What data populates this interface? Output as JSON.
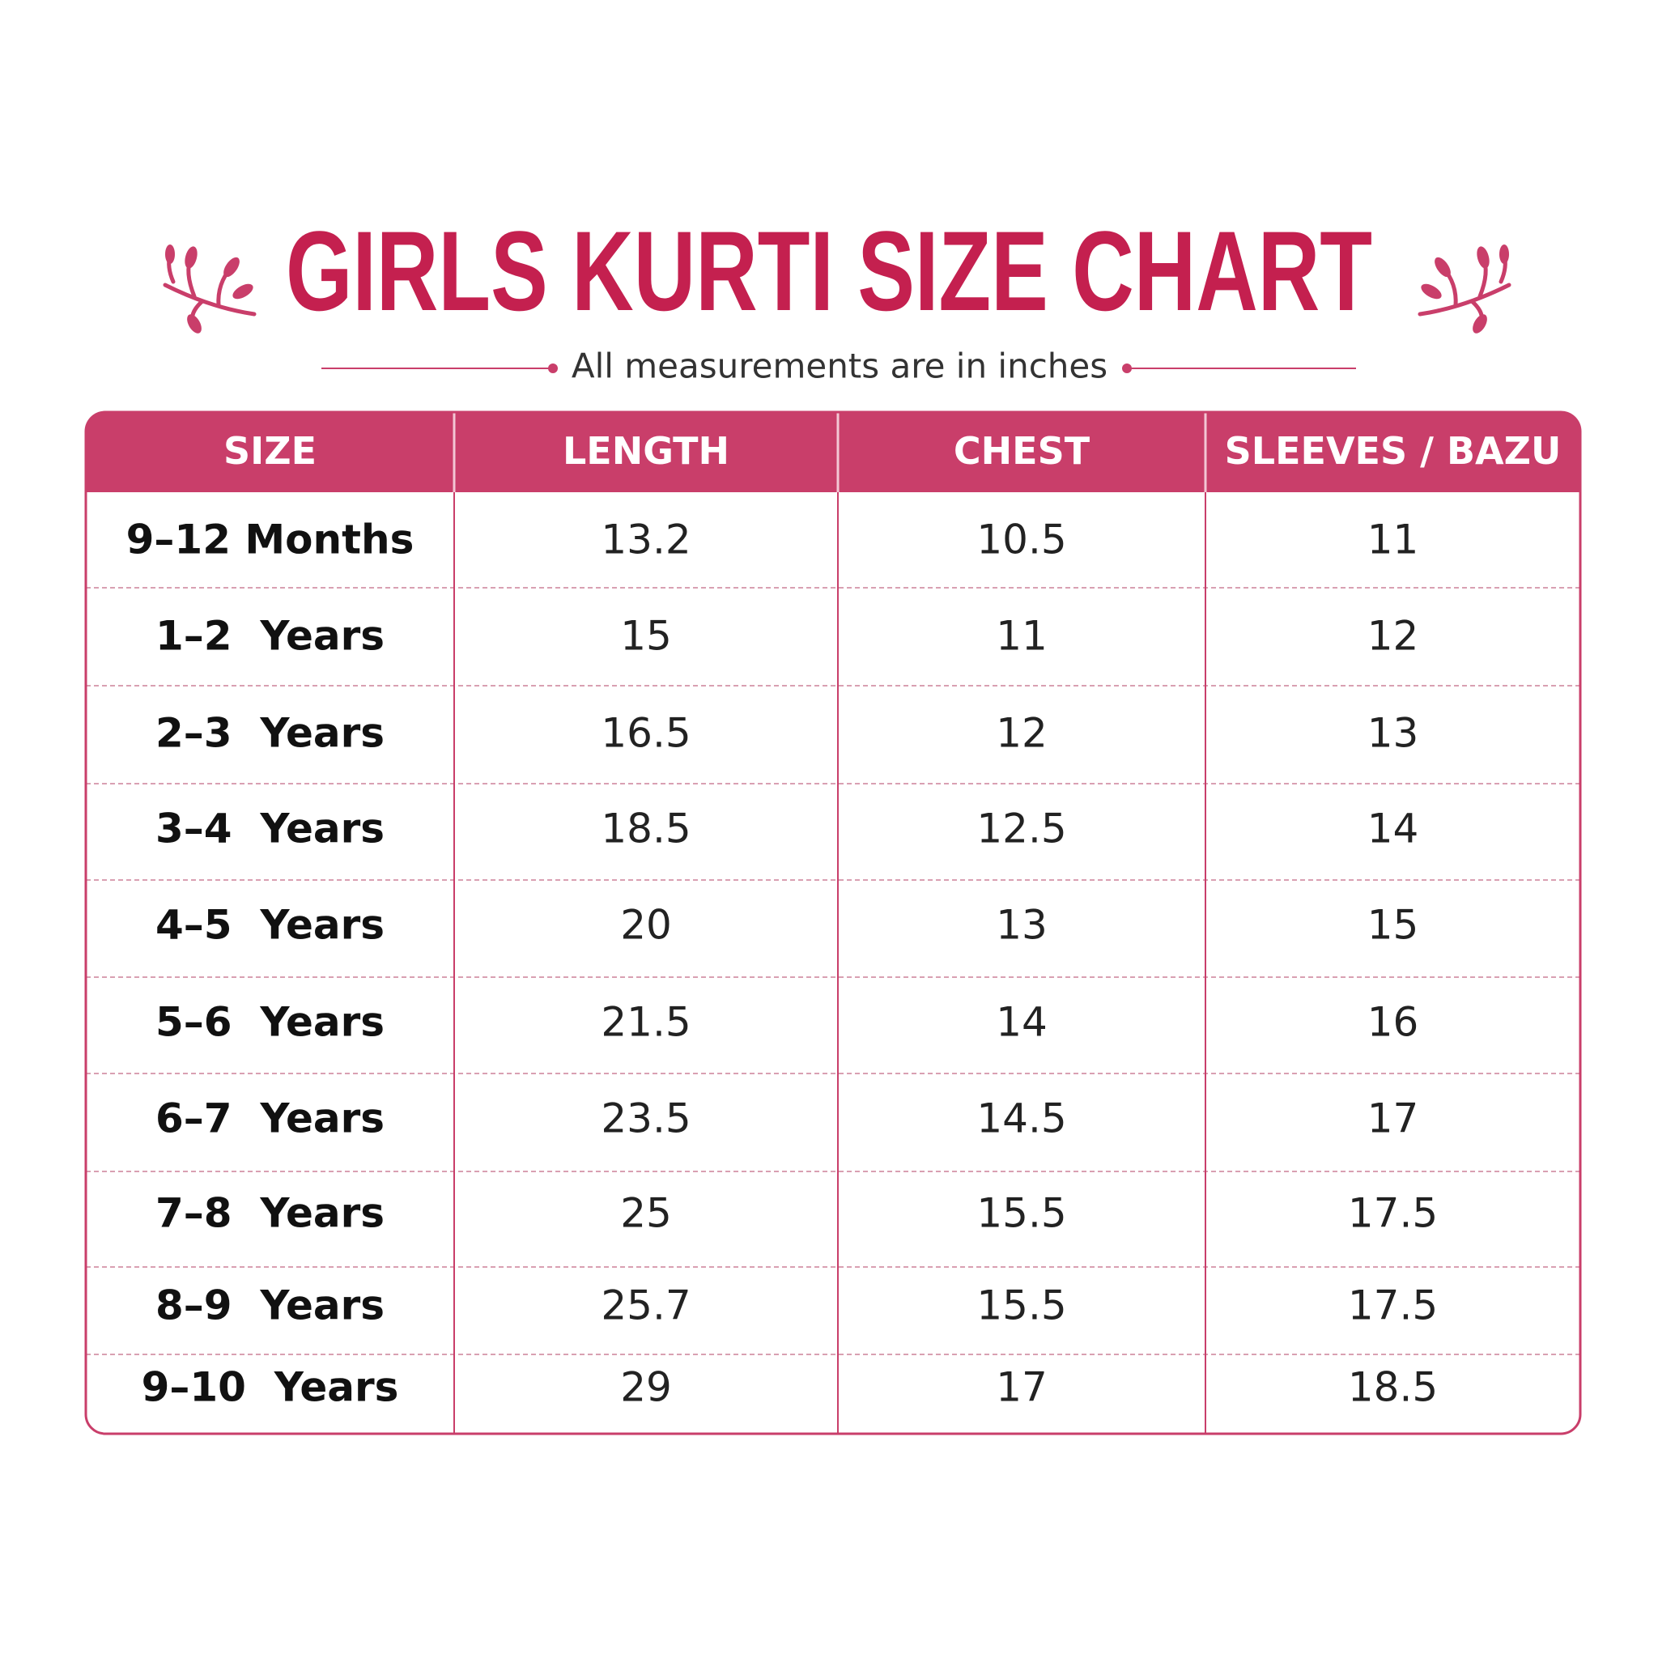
{
  "title": "GIRLS KURTI SIZE CHART",
  "subtitle": "All measurements are in inches",
  "table": {
    "headers": [
      "SIZE",
      "LENGTH",
      "CHEST",
      "SLEEVES / BAZU"
    ],
    "rows": [
      [
        "9–12 Months",
        "13.2",
        "10.5",
        "11"
      ],
      [
        "1–2  Years",
        "15",
        "11",
        "12"
      ],
      [
        "2–3  Years",
        "16.5",
        "12",
        "13"
      ],
      [
        "3–4  Years",
        "18.5",
        "12.5",
        "14"
      ],
      [
        "4–5  Years",
        "20",
        "13",
        "15"
      ],
      [
        "5–6  Years",
        "21.5",
        "14",
        "16"
      ],
      [
        "6–7  Years",
        "23.5",
        "14.5",
        "17"
      ],
      [
        "7–8  Years",
        "25",
        "15.5",
        "17.5"
      ],
      [
        "8–9  Years",
        "25.7",
        "15.5",
        "17.5"
      ],
      [
        "9–10  Years",
        "29",
        "17",
        "18.5"
      ]
    ]
  }
}
